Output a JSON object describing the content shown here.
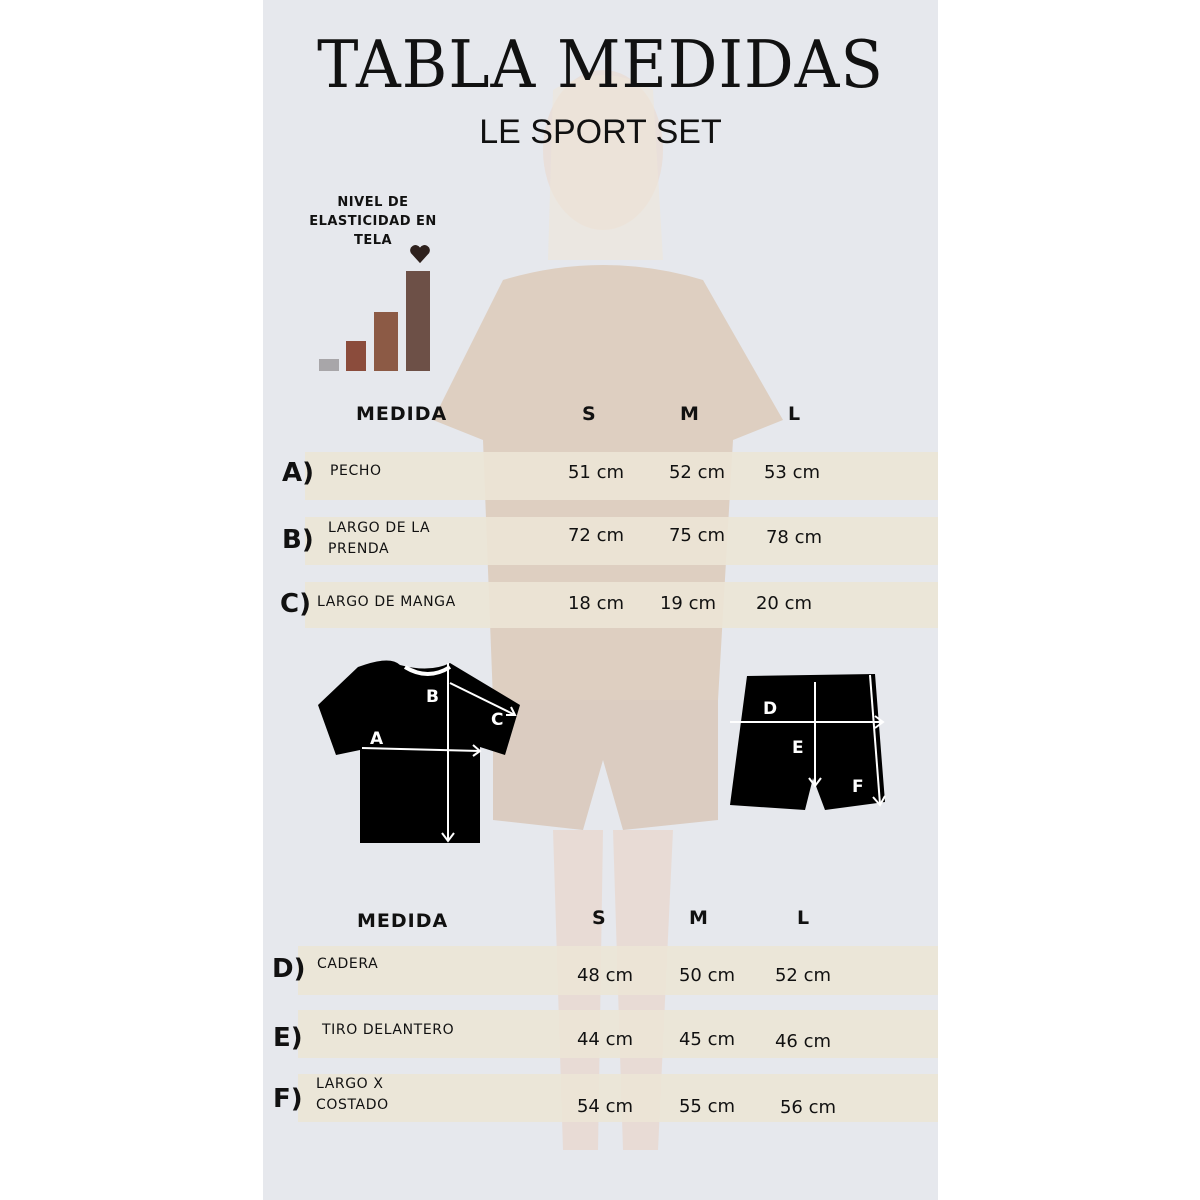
{
  "title": "TABLA MEDIDAS",
  "subtitle": "LE SPORT SET",
  "elasticity": {
    "label_lines": [
      "NIVEL DE",
      "ELASTICIDAD EN",
      "TELA"
    ],
    "levels": 4,
    "selected_level": 4,
    "bar_colors": [
      "#a8a6a9",
      "#8b4c3c",
      "#8c5a45",
      "#6d5047"
    ],
    "marker_icon": "heart-icon"
  },
  "top_table": {
    "headers": [
      "MEDIDA",
      "S",
      "M",
      "L"
    ],
    "rows": [
      {
        "letter": "A)",
        "label": [
          "PECHO"
        ],
        "values": [
          "51 cm",
          "52 cm",
          "53 cm"
        ]
      },
      {
        "letter": "B)",
        "label": [
          "LARGO DE LA",
          "PRENDA"
        ],
        "values": [
          "72 cm",
          "75 cm",
          "78 cm"
        ]
      },
      {
        "letter": "C)",
        "label": [
          "LARGO DE MANGA"
        ],
        "values": [
          "18  cm",
          "19  cm",
          "20 cm"
        ]
      }
    ]
  },
  "diagrams": {
    "shirt_labels": [
      "A",
      "B",
      "C"
    ],
    "shorts_labels": [
      "D",
      "E",
      "F"
    ]
  },
  "bottom_table": {
    "headers": [
      "MEDIDA",
      "S",
      "M",
      "L"
    ],
    "rows": [
      {
        "letter": "D)",
        "label": [
          "CADERA"
        ],
        "values": [
          "48 cm",
          "50  cm",
          "52 cm"
        ]
      },
      {
        "letter": "E)",
        "label": [
          "TIRO DELANTERO"
        ],
        "values": [
          "44 cm",
          "45 cm",
          "46 cm"
        ]
      },
      {
        "letter": "F)",
        "label": [
          "LARGO X",
          "COSTADO"
        ],
        "values": [
          "54 cm",
          "55 cm",
          "56  cm"
        ]
      }
    ]
  },
  "colors": {
    "row_band": "#ece5d6",
    "background": "#e6e8ed",
    "garment": "#d9c6b6"
  }
}
